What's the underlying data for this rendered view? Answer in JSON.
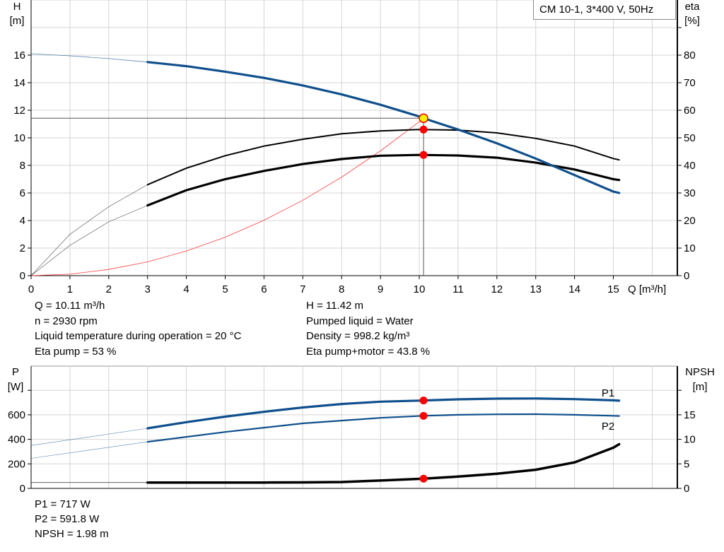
{
  "chart_data": [
    {
      "type": "line",
      "title": "CM 10-1, 3*400 V, 50Hz",
      "xlabel": "Q [m³/h]",
      "ylabel_left": [
        "H",
        "[m]"
      ],
      "ylabel_right": [
        "eta",
        "[%]"
      ],
      "xlim": [
        0,
        16.6
      ],
      "ylim_left": [
        0,
        20
      ],
      "ylim_right": [
        0,
        100
      ],
      "x_ticks": [
        "0",
        "1",
        "2",
        "3",
        "4",
        "5",
        "6",
        "7",
        "8",
        "9",
        "10",
        "11",
        "12",
        "13",
        "14",
        "15"
      ],
      "y_ticks_left": [
        "0",
        "2",
        "4",
        "6",
        "8",
        "10",
        "12",
        "14",
        "16"
      ],
      "y_ticks_right": [
        "0",
        "10",
        "20",
        "30",
        "40",
        "50",
        "60",
        "70",
        "80"
      ],
      "grid": true,
      "colors": {
        "head": "#0f4f8c",
        "eta": "#000000",
        "system": "#ff3b3b",
        "point": "#ff0000",
        "duty": "#ffee00"
      },
      "series": [
        {
          "key": "head",
          "axis": "left",
          "x": [
            0,
            1,
            2,
            3,
            4,
            5,
            6,
            7,
            8,
            9,
            10,
            10.11,
            11,
            12,
            13,
            14,
            15,
            15.15
          ],
          "y": [
            16.1,
            15.95,
            15.75,
            15.5,
            15.2,
            14.8,
            14.35,
            13.8,
            13.15,
            12.4,
            11.55,
            11.42,
            10.6,
            9.6,
            8.5,
            7.3,
            6.1,
            6.0
          ]
        },
        {
          "key": "eta_pump",
          "axis": "right",
          "x": [
            0,
            1,
            2,
            3,
            4,
            5,
            6,
            7,
            8,
            9,
            10,
            11,
            12,
            13,
            14,
            15,
            15.15
          ],
          "y": [
            0,
            15,
            25,
            33,
            39,
            43.5,
            47,
            49.5,
            51.5,
            52.5,
            53,
            52.8,
            51.8,
            49.8,
            47,
            42.5,
            42
          ]
        },
        {
          "key": "eta_pump_motor",
          "axis": "right",
          "x": [
            0,
            1,
            2,
            3,
            4,
            5,
            6,
            7,
            8,
            9,
            10,
            11,
            12,
            13,
            14,
            15,
            15.15
          ],
          "y": [
            0,
            11,
            19.5,
            25.5,
            31,
            35,
            38,
            40.5,
            42.3,
            43.5,
            43.8,
            43.6,
            42.8,
            41,
            38.5,
            35,
            34.7
          ]
        },
        {
          "key": "system",
          "axis": "left",
          "x": [
            0,
            1,
            2,
            3,
            4,
            5,
            6,
            7,
            8,
            9,
            10,
            10.11
          ],
          "y": [
            0,
            0.11,
            0.45,
            1.0,
            1.79,
            2.79,
            4.02,
            5.47,
            7.15,
            9.05,
            11.17,
            11.42
          ]
        }
      ],
      "duty_point": {
        "Q": 10.11,
        "H": 11.42,
        "eta_pump": 53,
        "eta_pump_motor": 43.8
      }
    },
    {
      "type": "line",
      "ylabel_left": [
        "P",
        "[W]"
      ],
      "ylabel_right": [
        "NPSH",
        "[m]"
      ],
      "xlim": [
        0,
        16.6
      ],
      "ylim_left": [
        0,
        1000
      ],
      "ylim_right": [
        0,
        25
      ],
      "y_ticks_left": [
        "0",
        "200",
        "400",
        "600"
      ],
      "y_ticks_right": [
        "0",
        "5",
        "10",
        "15"
      ],
      "grid": true,
      "series": [
        {
          "key": "P1",
          "name": "P1",
          "axis": "left",
          "x": [
            0,
            3,
            4,
            5,
            6,
            7,
            8,
            9,
            10,
            10.11,
            11,
            12,
            13,
            14,
            15,
            15.15
          ],
          "y": [
            350,
            490,
            540,
            585,
            625,
            660,
            688,
            707,
            716,
            717,
            726,
            732,
            733,
            728,
            718,
            715
          ]
        },
        {
          "key": "P2",
          "name": "P2",
          "axis": "left",
          "x": [
            0,
            3,
            5,
            7,
            9,
            10.11,
            11,
            12,
            13,
            14,
            15,
            15.15
          ],
          "y": [
            245,
            380,
            460,
            530,
            575,
            591.8,
            600,
            604,
            605,
            600,
            592,
            590
          ]
        },
        {
          "key": "NPSH",
          "axis": "right",
          "x": [
            0,
            3,
            6,
            7,
            8,
            9,
            10.11,
            11,
            12,
            13,
            14,
            15,
            15.15
          ],
          "y": [
            1.2,
            1.2,
            1.2,
            1.22,
            1.3,
            1.6,
            1.98,
            2.4,
            3.0,
            3.8,
            5.3,
            8.3,
            9.0
          ]
        }
      ],
      "duty_point": {
        "Q": 10.11,
        "P1": 717,
        "P2": 591.8,
        "NPSH": 1.98
      }
    }
  ],
  "info_top": {
    "left": [
      "Q = 10.11 m³/h",
      "n = 2930 rpm",
      "Liquid temperature during operation = 20 °C",
      "Eta pump = 53 %"
    ],
    "right": [
      "H = 11.42 m",
      "Pumped liquid = Water",
      "Density = 998.2 kg/m³",
      "Eta pump+motor = 43.8 %"
    ]
  },
  "info_bottom": [
    "P1 = 717 W",
    "P2 = 591.8 W",
    "NPSH = 1.98 m"
  ]
}
